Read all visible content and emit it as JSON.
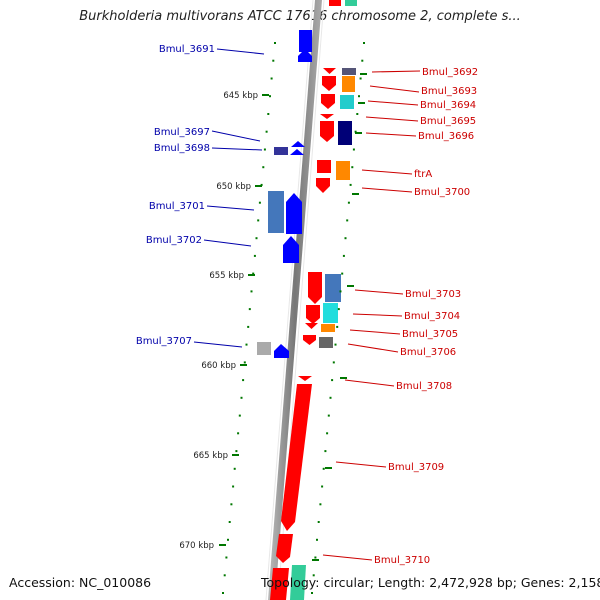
{
  "title": "Burkholderia multivorans ATCC 17616 chromosome 2, complete s...",
  "accession": "Accession: NC_010086",
  "topology": "Topology: circular; Length: 2,472,928 bp; Genes: 2,158",
  "colors": {
    "forward": "#ff0000",
    "reverse": "#0000ff",
    "label_forward": "#cc0000",
    "label_reverse": "#0000aa",
    "tick": "#007700",
    "backbone": "#777777"
  },
  "ticks": [
    {
      "label": "645 kbp",
      "kbp": 645
    },
    {
      "label": "650 kbp",
      "kbp": 650
    },
    {
      "label": "655 kbp",
      "kbp": 655
    },
    {
      "label": "660 kbp",
      "kbp": 660
    },
    {
      "label": "665 kbp",
      "kbp": 665
    },
    {
      "label": "670 kbp",
      "kbp": 670
    }
  ],
  "genes_reverse": [
    {
      "label": "Bmul_3691"
    },
    {
      "label": "Bmul_3697"
    },
    {
      "label": "Bmul_3698"
    },
    {
      "label": "Bmul_3701"
    },
    {
      "label": "Bmul_3702"
    },
    {
      "label": "Bmul_3707"
    }
  ],
  "genes_forward": [
    {
      "label": "Bmul_3692"
    },
    {
      "label": "Bmul_3693"
    },
    {
      "label": "Bmul_3694"
    },
    {
      "label": "Bmul_3695"
    },
    {
      "label": "Bmul_3696"
    },
    {
      "label": "ftrA"
    },
    {
      "label": "Bmul_3700"
    },
    {
      "label": "Bmul_3703"
    },
    {
      "label": "Bmul_3704"
    },
    {
      "label": "Bmul_3705"
    },
    {
      "label": "Bmul_3706"
    },
    {
      "label": "Bmul_3708"
    },
    {
      "label": "Bmul_3709"
    },
    {
      "label": "Bmul_3710"
    }
  ]
}
